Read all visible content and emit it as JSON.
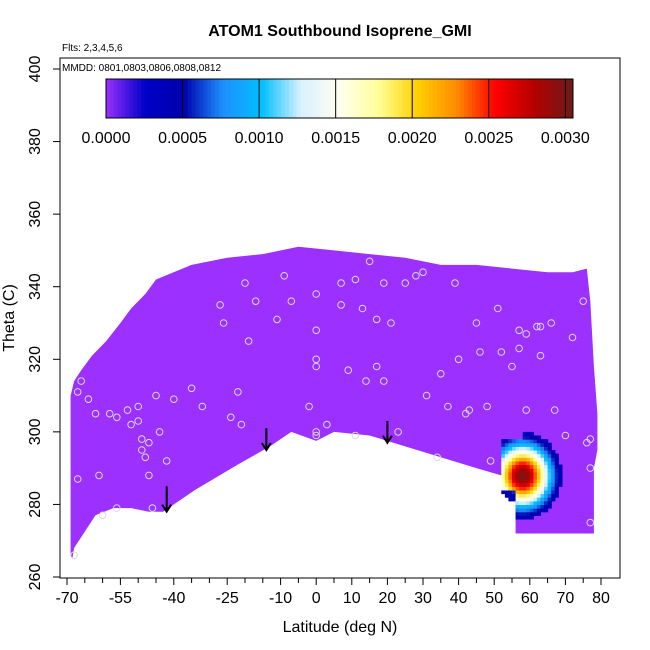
{
  "chart_data": {
    "type": "heatmap",
    "title": "ATOM1 Southbound Isoprene_GMI",
    "subtitle_flights": "Flts: 2,3,4,5,6",
    "subtitle_dates": "MMDD: 0801,0803,0806,0808,0812",
    "xlabel": "Latitude (deg N)",
    "ylabel": "Theta (C)",
    "xlim": [
      -70,
      85
    ],
    "ylim": [
      260,
      405
    ],
    "x_ticks": [
      -70,
      -55,
      -40,
      -25,
      -10,
      0,
      10,
      20,
      30,
      40,
      50,
      60,
      70,
      80
    ],
    "x_tick_labels": [
      "-70",
      "-55",
      "-40",
      "-25",
      "-10",
      "0",
      "10",
      "20",
      "30",
      "40",
      "50",
      "60",
      "70",
      "80"
    ],
    "x_minor_ticks": [
      -65,
      -60,
      -50,
      -45,
      -35,
      -30,
      -20,
      -15,
      -5,
      5,
      15,
      25,
      35,
      45,
      55,
      65,
      75
    ],
    "y_ticks": [
      260,
      280,
      300,
      320,
      340,
      360,
      380,
      400
    ],
    "y_tick_labels": [
      "260",
      "280",
      "300",
      "320",
      "340",
      "360",
      "380",
      "400"
    ],
    "colorbar": {
      "min": 0.0,
      "max": 0.00305,
      "tick_values": [
        0.0,
        0.0005,
        0.001,
        0.0015,
        0.002,
        0.0025,
        0.003
      ],
      "tick_labels": [
        "0.0000",
        "0.0005",
        "0.0010",
        "0.0015",
        "0.0020",
        "0.0025",
        "0.0030"
      ],
      "color_stops": [
        "#9b30ff",
        "#0000c8",
        "#0000aa",
        "#1e90ff",
        "#00bfff",
        "#d8f0ff",
        "#fffff0",
        "#ffff99",
        "#ffd000",
        "#ff8c00",
        "#ff0000",
        "#b40000",
        "#6e1a1a"
      ]
    },
    "background_value": 0.0,
    "data_outline": [
      [
        -68.5,
        265
      ],
      [
        -68,
        268
      ],
      [
        -62,
        277
      ],
      [
        -57,
        279
      ],
      [
        -52,
        279
      ],
      [
        -47,
        278
      ],
      [
        -43,
        278
      ],
      [
        -34,
        284
      ],
      [
        -22,
        291
      ],
      [
        -13,
        296
      ],
      [
        -7,
        300
      ],
      [
        0,
        297.5
      ],
      [
        5,
        300
      ],
      [
        15,
        299
      ],
      [
        25,
        296
      ],
      [
        35,
        293
      ],
      [
        45,
        290
      ],
      [
        52,
        288
      ],
      [
        56,
        286
      ],
      [
        56,
        272
      ],
      [
        78,
        272
      ],
      [
        78,
        290
      ],
      [
        79,
        295
      ],
      [
        79,
        305
      ],
      [
        78,
        318
      ],
      [
        77,
        336
      ],
      [
        76,
        345
      ],
      [
        72,
        344
      ],
      [
        65,
        344
      ],
      [
        55,
        345
      ],
      [
        45,
        346
      ],
      [
        35,
        346
      ],
      [
        25,
        348
      ],
      [
        15,
        349
      ],
      [
        5,
        350
      ],
      [
        -5,
        351
      ],
      [
        -15,
        349
      ],
      [
        -25,
        348
      ],
      [
        -35,
        346
      ],
      [
        -45,
        342
      ],
      [
        -48,
        338
      ],
      [
        -52,
        334
      ],
      [
        -55,
        330
      ],
      [
        -59,
        325
      ],
      [
        -63,
        321
      ],
      [
        -66,
        317
      ],
      [
        -68,
        314
      ],
      [
        -69,
        310
      ],
      [
        -69,
        295
      ],
      [
        -69,
        280
      ],
      [
        -69,
        266
      ]
    ],
    "plume": {
      "peak_lat": 58,
      "peak_theta": 288,
      "peak_value": 0.003,
      "lat_min": 52,
      "lat_max": 78,
      "theta_min": 276,
      "theta_max": 307
    },
    "sample_points": [
      [
        -68,
        266
      ],
      [
        -67,
        287
      ],
      [
        -67,
        311
      ],
      [
        -66,
        314
      ],
      [
        -64,
        309
      ],
      [
        -62,
        305
      ],
      [
        -61,
        288
      ],
      [
        -60,
        277
      ],
      [
        -56,
        279
      ],
      [
        -58,
        305
      ],
      [
        -56,
        304
      ],
      [
        -53,
        306
      ],
      [
        -52,
        302
      ],
      [
        -50,
        307
      ],
      [
        -50,
        303
      ],
      [
        -49,
        298
      ],
      [
        -49,
        295
      ],
      [
        -48,
        293
      ],
      [
        -47,
        288
      ],
      [
        -47,
        297
      ],
      [
        -46,
        279
      ],
      [
        -45,
        310
      ],
      [
        -44,
        300
      ],
      [
        -42,
        292
      ],
      [
        -40,
        309
      ],
      [
        -35,
        312
      ],
      [
        -32,
        307
      ],
      [
        -27,
        335
      ],
      [
        -26,
        330
      ],
      [
        -24,
        304
      ],
      [
        -22,
        311
      ],
      [
        -21,
        302
      ],
      [
        -20,
        341
      ],
      [
        -19,
        325
      ],
      [
        -17,
        336
      ],
      [
        -11,
        331
      ],
      [
        -9,
        343
      ],
      [
        -7,
        336
      ],
      [
        -2,
        307
      ],
      [
        0,
        338
      ],
      [
        0,
        328
      ],
      [
        0,
        320
      ],
      [
        0,
        318
      ],
      [
        0,
        300
      ],
      [
        0,
        299
      ],
      [
        3,
        302
      ],
      [
        7,
        341
      ],
      [
        7,
        335
      ],
      [
        9,
        317
      ],
      [
        11,
        299
      ],
      [
        11,
        342
      ],
      [
        13,
        334
      ],
      [
        14,
        314
      ],
      [
        15,
        347
      ],
      [
        17,
        331
      ],
      [
        17,
        318
      ],
      [
        19,
        314
      ],
      [
        19,
        341
      ],
      [
        21,
        330
      ],
      [
        23,
        300
      ],
      [
        25,
        341
      ],
      [
        28,
        343
      ],
      [
        30,
        344
      ],
      [
        31,
        310
      ],
      [
        34,
        293
      ],
      [
        35,
        316
      ],
      [
        37,
        307
      ],
      [
        39,
        341
      ],
      [
        40,
        320
      ],
      [
        42,
        305
      ],
      [
        43,
        306
      ],
      [
        45,
        330
      ],
      [
        46,
        322
      ],
      [
        48,
        307
      ],
      [
        49,
        292
      ],
      [
        51,
        334
      ],
      [
        52,
        322
      ],
      [
        55,
        318
      ],
      [
        57,
        328
      ],
      [
        57,
        323
      ],
      [
        59,
        327
      ],
      [
        59,
        306
      ],
      [
        62,
        329
      ],
      [
        63,
        329
      ],
      [
        63,
        321
      ],
      [
        66,
        330
      ],
      [
        67,
        306
      ],
      [
        70,
        299
      ],
      [
        72,
        326
      ],
      [
        75,
        336
      ],
      [
        76,
        297
      ],
      [
        77,
        298
      ],
      [
        77,
        290
      ],
      [
        77,
        275
      ]
    ],
    "arrows": [
      {
        "lat": -42,
        "theta_top": 285,
        "theta_tip": 278
      },
      {
        "lat": -14,
        "theta_top": 301,
        "theta_tip": 295
      },
      {
        "lat": 20,
        "theta_top": 303,
        "theta_tip": 297
      }
    ]
  }
}
